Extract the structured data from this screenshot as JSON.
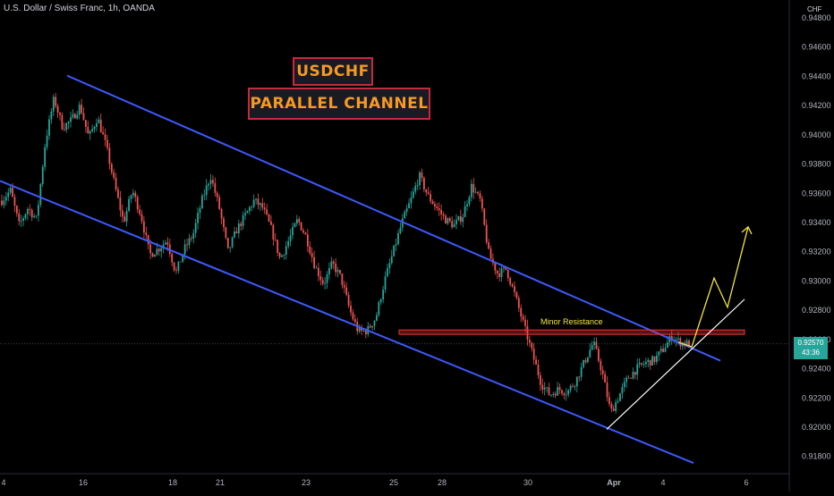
{
  "header": {
    "symbol_line": "U.S. Dollar / Swiss Franc, 1h, OANDA",
    "currency": "CHF"
  },
  "titles": {
    "line1": "USDCHF",
    "line2": "PARALLEL CHANNEL"
  },
  "annotations": {
    "resistance_label": "Minor Resistance"
  },
  "price_tag": {
    "price": "0.92570",
    "countdown": "43:36"
  },
  "colors": {
    "background": "#000000",
    "up": "#26a69a",
    "down": "#ef5350",
    "channel": "#3d5afe",
    "resistance": "#e53935",
    "projection": "#f5e63a",
    "trendline": "#ffffff",
    "title_text": "#f59a23",
    "title_border": "#c62a3a"
  },
  "chart_data": {
    "type": "candlestick",
    "y_axis": {
      "ticks": [
        "0.94800",
        "0.94600",
        "0.94400",
        "0.94200",
        "0.94000",
        "0.93800",
        "0.93600",
        "0.93400",
        "0.93200",
        "0.93000",
        "0.92800",
        "0.92600",
        "0.92400",
        "0.92200",
        "0.92000",
        "0.91800"
      ],
      "range": [
        0.9172,
        0.9486
      ],
      "position": "right"
    },
    "x_axis": {
      "ticks": [
        "4",
        "16",
        "18",
        "21",
        "23",
        "25",
        "28",
        "30",
        "Apr",
        "4",
        "6"
      ]
    },
    "path_key_points": [
      [
        0.9355,
        0.9362,
        0.9338,
        0.935,
        0.9342,
        0.9395,
        0.9425,
        0.9405,
        0.941,
        0.942
      ],
      [
        0.9398,
        0.9412,
        0.9392,
        0.9365,
        0.934,
        0.9362,
        0.9345,
        0.9318,
        0.9322,
        0.9328
      ],
      [
        0.9305,
        0.9322,
        0.9332,
        0.9355,
        0.9372,
        0.935,
        0.932,
        0.9335,
        0.9345,
        0.9355
      ],
      [
        0.935,
        0.9335,
        0.9315,
        0.9328,
        0.9342,
        0.933,
        0.931,
        0.9298,
        0.9312,
        0.9302
      ],
      [
        0.928,
        0.9265,
        0.9266,
        0.9275,
        0.93,
        0.932,
        0.934,
        0.9355,
        0.9372,
        0.9358
      ],
      [
        0.935,
        0.9342,
        0.9338,
        0.9345,
        0.9365,
        0.9355,
        0.9318,
        0.9305,
        0.9308,
        0.929
      ],
      [
        0.927,
        0.925,
        0.923,
        0.9222,
        0.9226,
        0.9224,
        0.9232,
        0.9245,
        0.9258,
        0.9238
      ],
      [
        0.921,
        0.9222,
        0.9234,
        0.924,
        0.9244,
        0.9246,
        0.9253,
        0.9262,
        0.9258,
        0.9257
      ]
    ],
    "candle_count": 320,
    "last_price": 0.9257,
    "resistance_zone": [
      0.92635,
      0.92665
    ],
    "channel_upper": [
      [
        0.944,
        0.9247
      ]
    ],
    "channel_lower": [
      [
        0.937,
        0.9175
      ]
    ],
    "support_trendline": [
      0.91985,
      0.92875
    ],
    "projection_path": [
      0.9255,
      0.9276,
      0.9258,
      0.9302,
      0.9282,
      0.9337
    ],
    "legend": "none",
    "grid": false
  }
}
